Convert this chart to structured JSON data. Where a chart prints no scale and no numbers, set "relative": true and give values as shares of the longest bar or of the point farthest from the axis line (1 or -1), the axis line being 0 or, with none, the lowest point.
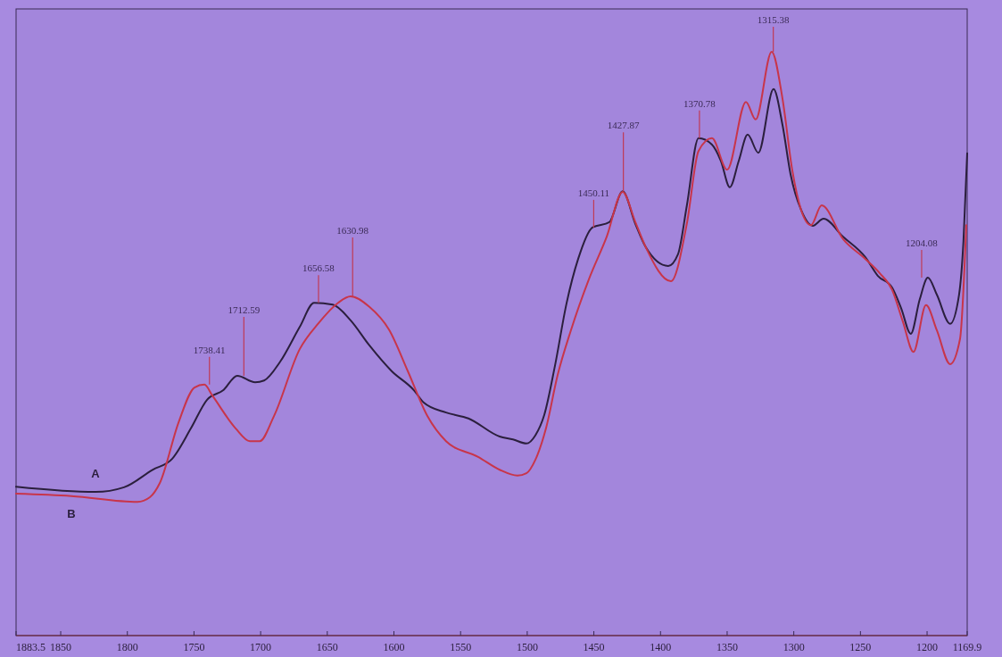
{
  "chart_data": {
    "type": "line",
    "relative": true,
    "xlim": [
      1883.5,
      1169.9
    ],
    "xticks": [
      1883.5,
      1850,
      1800,
      1750,
      1700,
      1650,
      1600,
      1550,
      1500,
      1450,
      1400,
      1350,
      1300,
      1250,
      1200,
      1169.9
    ],
    "grid": false,
    "legend": false,
    "marker": "none",
    "line_style": "solid",
    "series": [
      {
        "name": "A",
        "color": "#2b1f3d",
        "x": [
          1883.5,
          1823.9,
          1802.5,
          1781.1,
          1766.3,
          1752.3,
          1740.2,
          1728.2,
          1717.5,
          1704.1,
          1697.4,
          1685.4,
          1670.6,
          1659.9,
          1645.9,
          1632.5,
          1618.4,
          1601.7,
          1584.9,
          1577.6,
          1560.9,
          1544.1,
          1520.7,
          1510.7,
          1500.6,
          1493.9,
          1487.2,
          1479.2,
          1470.5,
          1461.8,
          1451.1,
          1438.4,
          1428.4,
          1419.0,
          1411.0,
          1394.2,
          1386.9,
          1380.2,
          1371.5,
          1361.4,
          1354.7,
          1348.0,
          1341.3,
          1334.6,
          1326.6,
          1315.2,
          1308.5,
          1302.5,
          1294.5,
          1285.8,
          1277.7,
          1263.0,
          1246.3,
          1236.9,
          1226.2,
          1219.5,
          1212.2,
          1205.5,
          1199.4,
          1192.7,
          1182.7,
          1176.0,
          1172.7,
          1169.9
        ],
        "values": [
          0.255,
          0.246,
          0.254,
          0.284,
          0.303,
          0.355,
          0.404,
          0.42,
          0.445,
          0.434,
          0.437,
          0.469,
          0.529,
          0.57,
          0.567,
          0.54,
          0.497,
          0.453,
          0.42,
          0.399,
          0.382,
          0.372,
          0.341,
          0.336,
          0.329,
          0.343,
          0.378,
          0.462,
          0.569,
          0.645,
          0.699,
          0.708,
          0.761,
          0.706,
          0.665,
          0.633,
          0.653,
          0.737,
          0.852,
          0.841,
          0.813,
          0.768,
          0.813,
          0.858,
          0.827,
          0.936,
          0.875,
          0.791,
          0.729,
          0.702,
          0.714,
          0.683,
          0.648,
          0.616,
          0.596,
          0.561,
          0.517,
          0.576,
          0.613,
          0.584,
          0.534,
          0.584,
          0.676,
          0.826
        ]
      },
      {
        "name": "B",
        "color": "#c8354a",
        "x": [
          1883.5,
          1842.0,
          1792.4,
          1783.1,
          1775.7,
          1761.6,
          1749.6,
          1742.2,
          1736.2,
          1718.8,
          1708.1,
          1700.7,
          1690.0,
          1670.6,
          1656.6,
          1641.9,
          1632.5,
          1618.4,
          1603.7,
          1589.6,
          1574.9,
          1560.9,
          1536.8,
          1520.7,
          1507.3,
          1500.6,
          1493.9,
          1485.9,
          1477.2,
          1467.2,
          1453.8,
          1440.4,
          1428.4,
          1419.0,
          1411.0,
          1392.2,
          1380.2,
          1371.5,
          1361.4,
          1350.0,
          1335.9,
          1328.6,
          1316.6,
          1308.5,
          1301.2,
          1294.5,
          1287.1,
          1279.1,
          1263.0,
          1246.3,
          1235.6,
          1226.2,
          1218.2,
          1210.2,
          1200.8,
          1192.7,
          1182.7,
          1175.3,
          1170.6
        ],
        "values": [
          0.243,
          0.239,
          0.229,
          0.237,
          0.261,
          0.365,
          0.425,
          0.43,
          0.411,
          0.355,
          0.333,
          0.333,
          0.376,
          0.491,
          0.535,
          0.57,
          0.581,
          0.563,
          0.524,
          0.453,
          0.376,
          0.333,
          0.306,
          0.284,
          0.274,
          0.278,
          0.301,
          0.355,
          0.446,
          0.523,
          0.61,
          0.683,
          0.76,
          0.709,
          0.665,
          0.607,
          0.706,
          0.83,
          0.852,
          0.798,
          0.914,
          0.884,
          1.0,
          0.92,
          0.798,
          0.729,
          0.703,
          0.737,
          0.679,
          0.645,
          0.621,
          0.592,
          0.538,
          0.486,
          0.566,
          0.523,
          0.465,
          0.508,
          0.703
        ]
      }
    ],
    "annotations": [
      {
        "text": "1738.41",
        "x": 1738.41,
        "y": 0.43
      },
      {
        "text": "1712.59",
        "x": 1712.59,
        "y": 0.445
      },
      {
        "text": "1656.58",
        "x": 1656.58,
        "y": 0.57
      },
      {
        "text": "1630.98",
        "x": 1630.98,
        "y": 0.581
      },
      {
        "text": "1450.11",
        "x": 1450.11,
        "y": 0.699
      },
      {
        "text": "1427.87",
        "x": 1427.87,
        "y": 0.761
      },
      {
        "text": "1370.78",
        "x": 1370.78,
        "y": 0.852
      },
      {
        "text": "1315.38",
        "x": 1315.38,
        "y": 1.0
      },
      {
        "text": "1204.08",
        "x": 1204.08,
        "y": 0.613
      }
    ]
  }
}
